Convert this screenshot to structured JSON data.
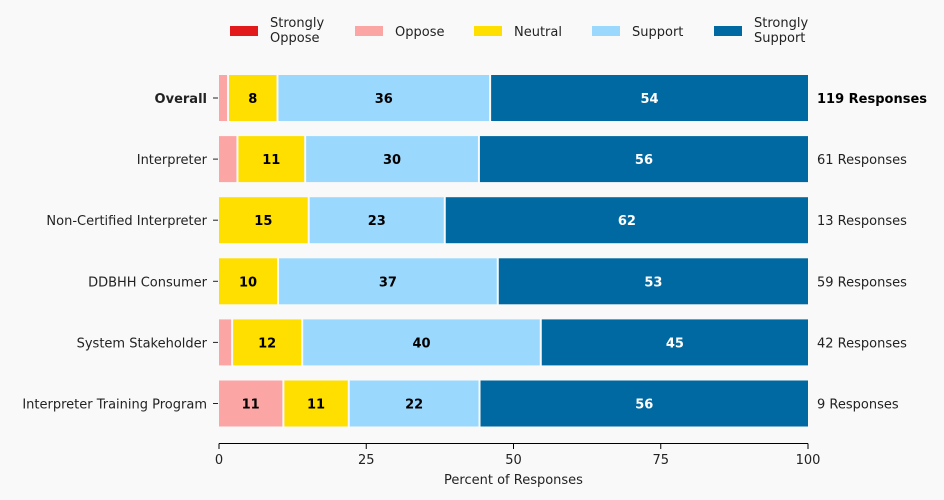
{
  "chart_data": {
    "type": "bar",
    "orientation": "horizontal-stacked",
    "title": "",
    "xlabel": "Percent of Responses",
    "ylabel": "",
    "xlim": [
      0,
      100
    ],
    "xticks": [
      0,
      25,
      50,
      75,
      100
    ],
    "grid": false,
    "legend_position": "top",
    "legend": [
      {
        "name": "Strongly Oppose",
        "lines": [
          "Strongly",
          "Oppose"
        ],
        "color": "#e31a1c"
      },
      {
        "name": "Oppose",
        "lines": [
          "Oppose"
        ],
        "color": "#fca5a5"
      },
      {
        "name": "Neutral",
        "lines": [
          "Neutral"
        ],
        "color": "#ffdf00"
      },
      {
        "name": "Support",
        "lines": [
          "Support"
        ],
        "color": "#9ad9fd"
      },
      {
        "name": "Strongly Support",
        "lines": [
          "Strongly",
          "Support"
        ],
        "color": "#0069a2"
      }
    ],
    "categories": [
      "Overall",
      "Interpreter",
      "Non-Certified Interpreter",
      "DDBHH Consumer",
      "System Stakeholder",
      "Interpreter Training Program"
    ],
    "bold_categories": [
      "Overall"
    ],
    "series": [
      {
        "name": "Strongly Oppose",
        "values": [
          0,
          0,
          0,
          0,
          0,
          0
        ]
      },
      {
        "name": "Oppose",
        "values": [
          1.7,
          3.3,
          0,
          0,
          2.4,
          11.1
        ]
      },
      {
        "name": "Neutral",
        "values": [
          8.4,
          11.5,
          15.4,
          10.2,
          11.9,
          11.1
        ]
      },
      {
        "name": "Support",
        "values": [
          36.1,
          29.5,
          23.1,
          37.3,
          40.5,
          22.2
        ]
      },
      {
        "name": "Strongly Support",
        "values": [
          53.8,
          55.7,
          61.5,
          52.5,
          45.2,
          55.6
        ]
      }
    ],
    "data_labels": [
      [
        "",
        "",
        "8",
        "36",
        "54"
      ],
      [
        "",
        "",
        "11",
        "30",
        "56"
      ],
      [
        "",
        "",
        "15",
        "23",
        "62"
      ],
      [
        "",
        "",
        "10",
        "37",
        "53"
      ],
      [
        "",
        "",
        "12",
        "40",
        "45"
      ],
      [
        "",
        "11",
        "11",
        "22",
        "56"
      ]
    ],
    "label_colors": [
      "#ffffff",
      "#000000",
      "#000000",
      "#000000",
      "#ffffff"
    ],
    "responses": [
      "119 Responses",
      "61 Responses",
      "13 Responses",
      "59 Responses",
      "42 Responses",
      "9 Responses"
    ]
  }
}
